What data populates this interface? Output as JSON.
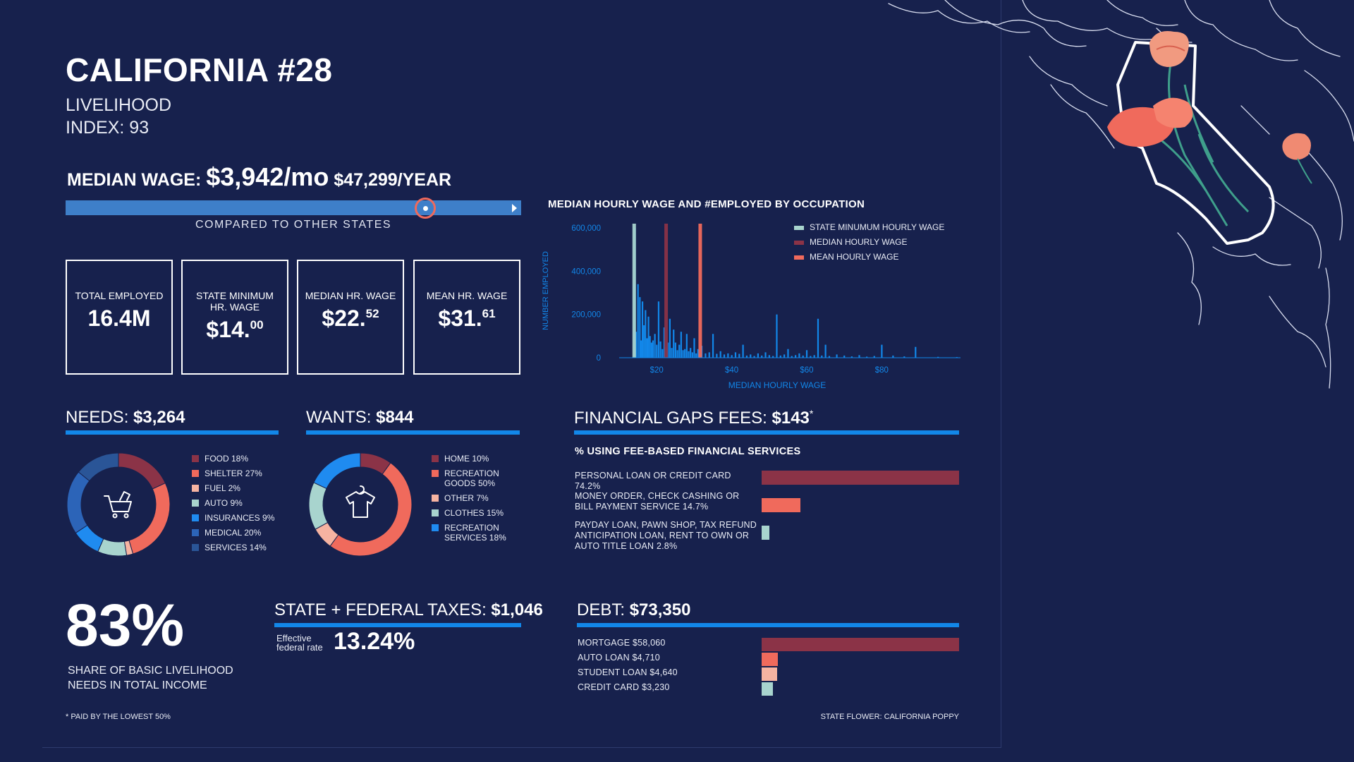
{
  "header": {
    "title": "CALIFORNIA #28",
    "subtitle_line1": "LIVELIHOOD",
    "subtitle_line2": "INDEX: 93"
  },
  "median_wage": {
    "label": "MEDIAN WAGE:",
    "monthly": "$3,942/mo",
    "yearly": "$47,299/YEAR",
    "compare_label": "COMPARED TO OTHER STATES",
    "rank_fraction": 0.79
  },
  "stats": [
    {
      "label": "TOTAL EMPLOYED",
      "value": "16.4M",
      "sup": ""
    },
    {
      "label": "STATE MINIMUM HR. WAGE",
      "value": "$14.",
      "sup": "00"
    },
    {
      "label": "MEDIAN HR. WAGE",
      "value": "$22.",
      "sup": "52"
    },
    {
      "label": "MEAN HR. WAGE",
      "value": "$31.",
      "sup": "61"
    }
  ],
  "needs": {
    "label": "NEEDS:",
    "amount": "$3,264",
    "items": [
      {
        "name": "FOOD 18%",
        "pct": 18,
        "color": "#8b3347"
      },
      {
        "name": "SHELTER 27%",
        "pct": 27,
        "color": "#f06a5c"
      },
      {
        "name": "FUEL 2%",
        "pct": 2,
        "color": "#f6b3a1"
      },
      {
        "name": "AUTO 9%",
        "pct": 9,
        "color": "#a8d4ce"
      },
      {
        "name": "INSURANCES 9%",
        "pct": 9,
        "color": "#1f8bf0"
      },
      {
        "name": "MEDICAL 20%",
        "pct": 20,
        "color": "#2c64b8"
      },
      {
        "name": "SERVICES 14%",
        "pct": 14,
        "color": "#2a5597"
      }
    ],
    "icon": "shopping-cart-icon"
  },
  "wants": {
    "label": "WANTS:",
    "amount": "$844",
    "items": [
      {
        "name": "HOME 10%",
        "pct": 10,
        "color": "#8b3347"
      },
      {
        "name": "RECREATION GOODS 50%",
        "pct": 50,
        "color": "#f06a5c"
      },
      {
        "name": "OTHER 7%",
        "pct": 7,
        "color": "#f6b3a1"
      },
      {
        "name": "CLOTHES 15%",
        "pct": 15,
        "color": "#a8d4ce"
      },
      {
        "name": "RECREATION SERVICES 18%",
        "pct": 18,
        "color": "#1f8bf0"
      }
    ],
    "icon": "shirt-icon"
  },
  "financial_gaps": {
    "label": "FINANCIAL GAPS FEES:",
    "amount": "$143",
    "asterisk": "*",
    "subhead": "% USING FEE-BASED FINANCIAL SERVICES",
    "items": [
      {
        "name": "PERSONAL LOAN OR CREDIT CARD 74.2%",
        "pct": 74.2,
        "color": "#8b3347"
      },
      {
        "name": "MONEY ORDER, CHECK CASHING OR BILL PAYMENT SERVICE 14.7%",
        "pct": 14.7,
        "color": "#f06a5c"
      },
      {
        "name": "PAYDAY LOAN, PAWN SHOP, TAX REFUND ANTICIPATION LOAN, RENT TO OWN OR AUTO TITLE LOAN 2.8%",
        "pct": 2.8,
        "color": "#a8d4ce"
      }
    ]
  },
  "share": {
    "value": "83%",
    "caption_line1": "SHARE OF BASIC LIVELIHOOD",
    "caption_line2": "NEEDS IN TOTAL INCOME"
  },
  "taxes": {
    "label": "STATE + FEDERAL TAXES:",
    "amount": "$1,046",
    "rate_label_line1": "Effective",
    "rate_label_line2": "federal rate",
    "rate": "13.24%"
  },
  "debt": {
    "label": "DEBT:",
    "amount": "$73,350",
    "items": [
      {
        "name": "MORTGAGE $58,060",
        "value": 58060,
        "color": "#8b3347"
      },
      {
        "name": "AUTO LOAN $4,710",
        "value": 4710,
        "color": "#f06a5c"
      },
      {
        "name": "STUDENT LOAN $4,640",
        "value": 4640,
        "color": "#f6b3a1"
      },
      {
        "name": "CREDIT CARD $3,230",
        "value": 3230,
        "color": "#a8d4ce"
      }
    ]
  },
  "footnote": "* PAID BY THE LOWEST 50%",
  "state_flower": "STATE FLOWER: CALIFORNIA POPPY",
  "colors": {
    "background": "#17214d",
    "accent_blue": "#1287e9",
    "bar_blue": "#3e7fc9",
    "dark_red": "#8b3347",
    "coral": "#f06a5c",
    "teal": "#a8d4ce"
  },
  "chart_data": {
    "type": "bar",
    "title": "MEDIAN HOURLY WAGE AND #EMPLOYED BY OCCUPATION",
    "xlabel": "MEDIAN HOURLY WAGE",
    "ylabel": "NUMBER EMPLOYED",
    "xlim": [
      10,
      101
    ],
    "ylim": [
      0,
      600000
    ],
    "xticks": [
      "$20",
      "$40",
      "$60",
      "$80"
    ],
    "xtick_values": [
      20,
      40,
      60,
      80
    ],
    "yticks": [
      "0",
      "200,000",
      "400,000",
      "600,000"
    ],
    "ytick_values": [
      0,
      200000,
      400000,
      600000
    ],
    "legend": [
      "STATE MINUMUM HOURLY WAGE",
      "MEDIAN HOURLY WAGE",
      "MEAN HOURLY WAGE"
    ],
    "legend_position": "top-right",
    "reference_lines": [
      {
        "name": "STATE MINUMUM HOURLY WAGE",
        "x": 14.0,
        "color": "#a8d4ce"
      },
      {
        "name": "MEDIAN HOURLY WAGE",
        "x": 22.52,
        "color": "#8b3347"
      },
      {
        "name": "MEAN HOURLY WAGE",
        "x": 31.61,
        "color": "#f06a5c"
      }
    ],
    "series": [
      {
        "x": [
          14.2,
          14.5,
          15.0,
          15.5,
          15.8,
          16.2,
          16.6,
          17.0,
          17.4,
          17.8,
          18.2,
          18.6,
          19.0,
          19.5,
          20.0,
          20.5,
          21.0,
          21.5,
          22.0,
          22.5,
          23.0,
          23.5,
          24.0,
          24.5,
          25.0,
          25.5,
          26.0,
          26.5,
          27.0,
          27.5,
          28.0,
          28.5,
          29.0,
          29.5,
          30.0,
          30.5,
          31.0,
          31.5,
          32.0,
          33.0,
          34.0,
          35.0,
          36.0,
          37.0,
          38.0,
          39.0,
          40.0,
          41.0,
          42.0,
          43.0,
          44.0,
          45.0,
          46.0,
          47.0,
          48.0,
          49.0,
          50.0,
          51.0,
          52.0,
          53.0,
          54.0,
          55.0,
          56.0,
          57.0,
          58.0,
          59.0,
          60.0,
          61.0,
          62.0,
          63.0,
          64.0,
          65.0,
          66.0,
          68.0,
          70.0,
          72.0,
          74.0,
          76.0,
          78.0,
          80.0,
          83.0,
          86.0,
          89.0,
          95.0,
          100.0
        ],
        "values": [
          600000,
          120000,
          340000,
          280000,
          80000,
          260000,
          150000,
          220000,
          90000,
          190000,
          100000,
          70000,
          80000,
          110000,
          60000,
          260000,
          75000,
          40000,
          140000,
          50000,
          70000,
          180000,
          45000,
          130000,
          70000,
          35000,
          60000,
          120000,
          35000,
          40000,
          110000,
          30000,
          45000,
          25000,
          90000,
          20000,
          40000,
          18000,
          55000,
          20000,
          25000,
          110000,
          18000,
          30000,
          15000,
          20000,
          12000,
          25000,
          18000,
          60000,
          10000,
          15000,
          8000,
          20000,
          10000,
          25000,
          12000,
          8000,
          200000,
          10000,
          15000,
          40000,
          8000,
          12000,
          20000,
          10000,
          35000,
          8000,
          12000,
          180000,
          10000,
          60000,
          8000,
          15000,
          10000,
          6000,
          12000,
          5000,
          8000,
          60000,
          10000,
          6000,
          50000,
          4000,
          3000
        ],
        "color": "#1287e9"
      }
    ]
  }
}
